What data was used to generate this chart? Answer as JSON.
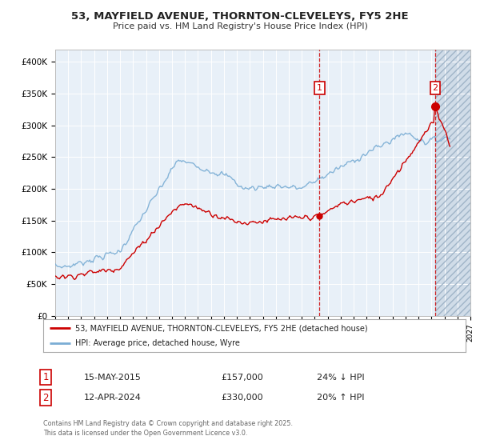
{
  "title1": "53, MAYFIELD AVENUE, THORNTON-CLEVELEYS, FY5 2HE",
  "title2": "Price paid vs. HM Land Registry's House Price Index (HPI)",
  "legend_red": "53, MAYFIELD AVENUE, THORNTON-CLEVELEYS, FY5 2HE (detached house)",
  "legend_blue": "HPI: Average price, detached house, Wyre",
  "sale1_label": "1",
  "sale1_date": "15-MAY-2015",
  "sale1_price": 157000,
  "sale1_price_str": "£157,000",
  "sale1_pct": "24% ↓ HPI",
  "sale2_label": "2",
  "sale2_date": "12-APR-2024",
  "sale2_price": 330000,
  "sale2_price_str": "£330,000",
  "sale2_pct": "20% ↑ HPI",
  "sale1_year": 2015.37,
  "sale2_year": 2024.28,
  "red_color": "#cc0000",
  "blue_color": "#7aadd4",
  "chart_bg": "#e8f0f8",
  "hatch_bg": "#d0dce8",
  "ylim_min": 0,
  "ylim_max": 420000,
  "xlim_min": 1995,
  "xlim_max": 2027,
  "footer": "Contains HM Land Registry data © Crown copyright and database right 2025.\nThis data is licensed under the Open Government Licence v3.0."
}
